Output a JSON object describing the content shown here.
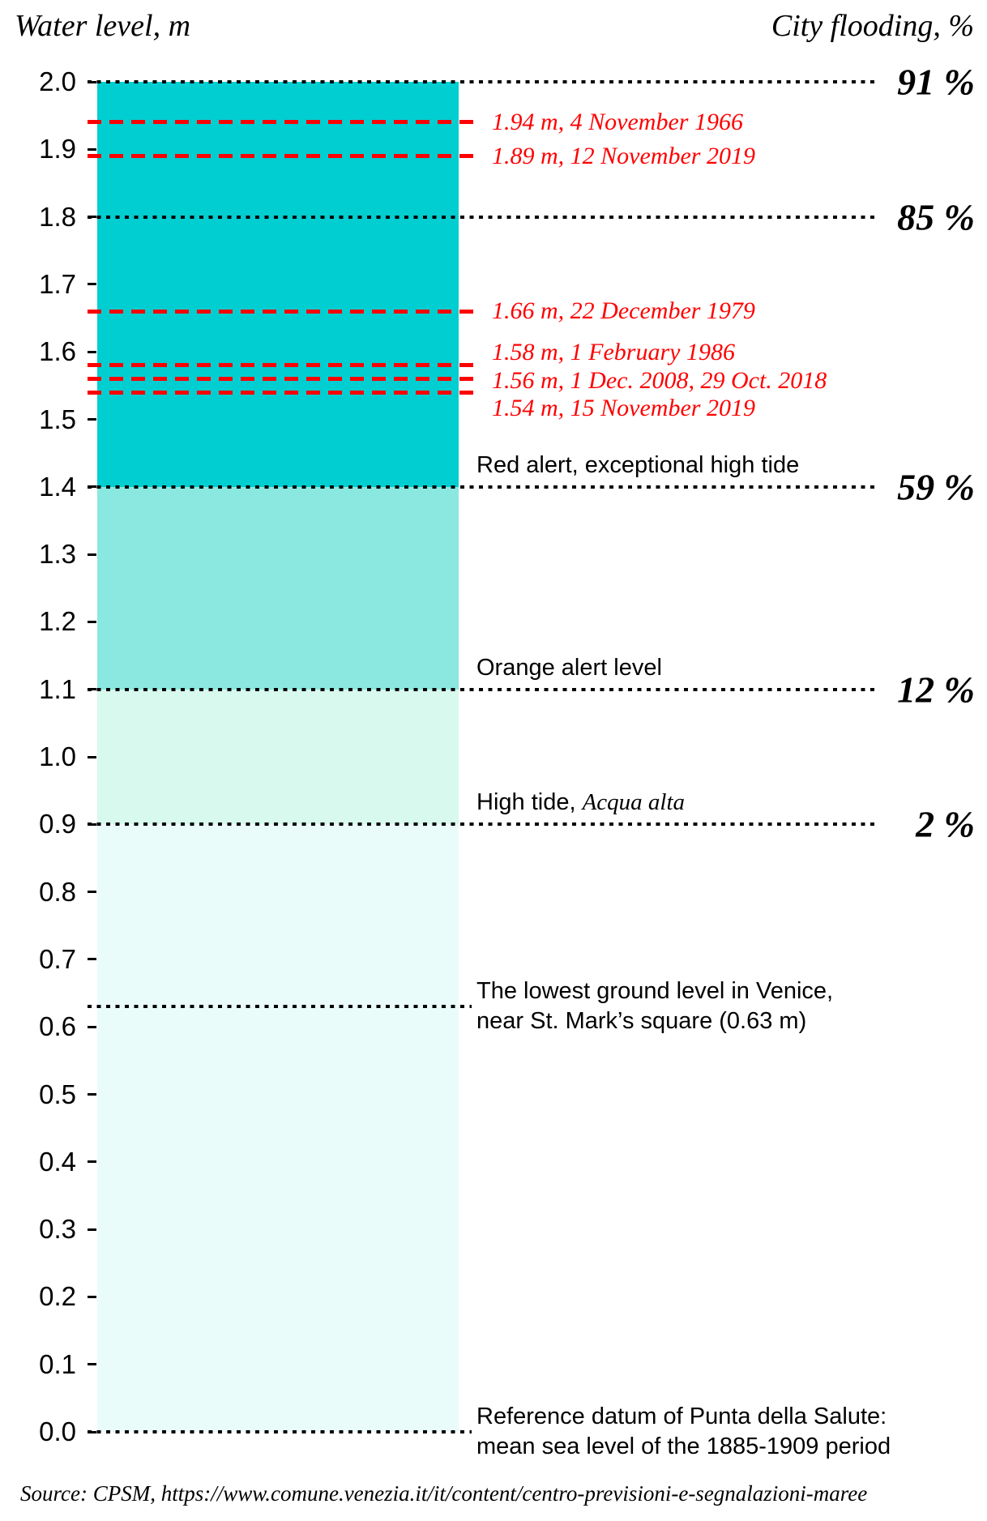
{
  "header": {
    "left_title": "Water level, m",
    "right_title": "City flooding, %"
  },
  "source_caption": "Source: CPSM, https://www.comune.venezia.it/it/content/centro-previsioni-e-segnalazioni-maree",
  "colors": {
    "band_exceptional": "#00ced1",
    "band_red_alert": "#8be8e0",
    "band_orange_alert": "#d7f9ee",
    "band_normal": "#eafcfa",
    "event_red": "#ff0000",
    "line_black": "#000000"
  },
  "chart_data": {
    "type": "area",
    "ylabel": "Water level, m",
    "ylabel_right": "City flooding, %",
    "ylim": [
      0.0,
      2.0
    ],
    "tick_step": 0.1,
    "grid": "off",
    "tick_labels": [
      "2.0",
      "1.9",
      "1.8",
      "1.7",
      "1.6",
      "1.5",
      "1.4",
      "1.3",
      "1.2",
      "1.1",
      "1.0",
      "0.9",
      "0.8",
      "0.7",
      "0.6",
      "0.5",
      "0.4",
      "0.3",
      "0.2",
      "0.1",
      "0.0"
    ],
    "bands": [
      {
        "from": 1.4,
        "to": 2.0,
        "color": "#00ced1",
        "meaning": "exceptional-high-tide"
      },
      {
        "from": 1.1,
        "to": 1.4,
        "color": "#8be8e0",
        "meaning": "red-alert-range"
      },
      {
        "from": 0.9,
        "to": 1.1,
        "color": "#d7f9ee",
        "meaning": "orange-alert-range"
      },
      {
        "from": 0.0,
        "to": 0.9,
        "color": "#eafcfa",
        "meaning": "normal-range"
      }
    ],
    "thresholds": [
      {
        "level": 2.0,
        "flooding": "91 %",
        "label": "",
        "label_italic": "",
        "long_line": true
      },
      {
        "level": 1.8,
        "flooding": "85 %",
        "label": "",
        "label_italic": "",
        "long_line": true
      },
      {
        "level": 1.4,
        "flooding": "59 %",
        "label": "Red alert, exceptional high tide",
        "label_italic": "",
        "long_line": true
      },
      {
        "level": 1.1,
        "flooding": "12 %",
        "label": "Orange alert level",
        "label_italic": "",
        "long_line": true
      },
      {
        "level": 0.9,
        "flooding": "2 %",
        "label": "High tide, ",
        "label_italic": "Acqua alta",
        "long_line": true
      },
      {
        "level": 0.63,
        "flooding": "",
        "label_lines": [
          "The lowest ground level in Venice,",
          "near St. Mark’s square (0.63 m)"
        ],
        "long_line": false
      },
      {
        "level": 0.0,
        "flooding": "",
        "label_lines": [
          "Reference datum of Punta della Salute:",
          "mean sea level of the 1885-1909 period"
        ],
        "long_line": false
      }
    ],
    "events": [
      {
        "level": 1.94,
        "label": "1.94 m, 4 November 1966",
        "label_dy": 0
      },
      {
        "level": 1.89,
        "label": "1.89 m, 12 November 2019",
        "label_dy": 0
      },
      {
        "level": 1.66,
        "label": "1.66 m, 22 December 1979",
        "label_dy": 0
      },
      {
        "level": 1.58,
        "label": "1.58 m, 1 February 1986",
        "label_dy": -16
      },
      {
        "level": 1.56,
        "label": "1.56 m, 1 Dec. 2008, 29 Oct. 2018",
        "label_dy": 2
      },
      {
        "level": 1.54,
        "label": "1.54 m, 15 November 2019",
        "label_dy": 20
      }
    ]
  }
}
